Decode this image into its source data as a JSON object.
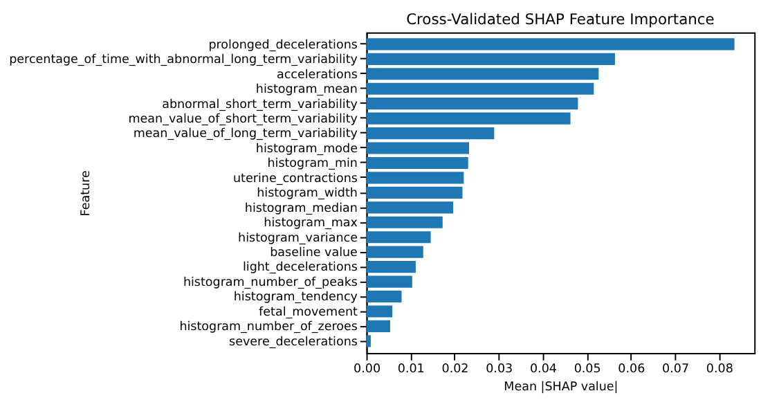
{
  "chart_data": {
    "type": "bar",
    "orientation": "horizontal",
    "title": "Cross-Validated SHAP Feature Importance",
    "xlabel": "Mean |SHAP value|",
    "ylabel": "Feature",
    "categories": [
      "prolonged_decelerations",
      "percentage_of_time_with_abnormal_long_term_variability",
      "accelerations",
      "histogram_mean",
      "abnormal_short_term_variability",
      "mean_value_of_short_term_variability",
      "mean_value_of_long_term_variability",
      "histogram_mode",
      "histogram_min",
      "uterine_contractions",
      "histogram_width",
      "histogram_median",
      "histogram_max",
      "histogram_variance",
      "baseline value",
      "light_decelerations",
      "histogram_number_of_peaks",
      "histogram_tendency",
      "fetal_movement",
      "histogram_number_of_zeroes",
      "severe_decelerations"
    ],
    "values": [
      0.0835,
      0.0564,
      0.0527,
      0.0516,
      0.048,
      0.0463,
      0.029,
      0.0233,
      0.0231,
      0.0221,
      0.0218,
      0.0197,
      0.0173,
      0.0146,
      0.0129,
      0.0112,
      0.0104,
      0.008,
      0.0059,
      0.0054,
      0.001
    ],
    "color": "#1f77b4",
    "xlim": [
      0,
      0.088
    ],
    "xticks": [
      {
        "value": 0,
        "label": "0.00"
      },
      0.01,
      0.02,
      0.03,
      0.04,
      0.05,
      0.06,
      0.07,
      0.08
    ],
    "grid": false
  }
}
